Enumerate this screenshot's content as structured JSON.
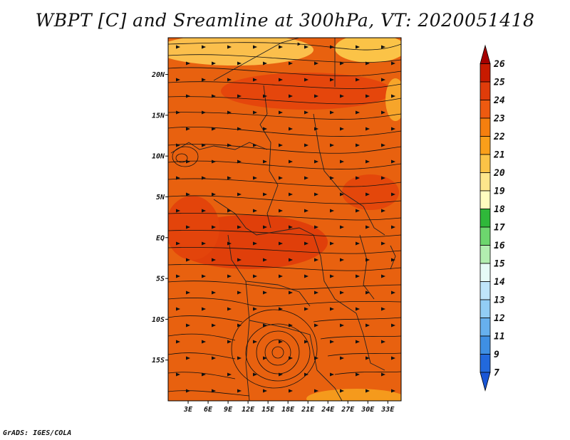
{
  "title": "WBPT [C] and Sreamline at 300hPa, VT: 2020051418",
  "credit": "GrADS: IGES/COLA",
  "map": {
    "lon_labels": [
      "3E",
      "6E",
      "9E",
      "12E",
      "15E",
      "18E",
      "21E",
      "24E",
      "27E",
      "30E",
      "33E"
    ],
    "lon_values": [
      3,
      6,
      9,
      12,
      15,
      18,
      21,
      24,
      27,
      30,
      33
    ],
    "lat_labels": [
      "20N",
      "15N",
      "10N",
      "5N",
      "EQ",
      "5S",
      "10S",
      "15S"
    ],
    "lat_values": [
      20,
      15,
      10,
      5,
      0,
      -5,
      -10,
      -15
    ],
    "lon_range": [
      0,
      35
    ],
    "lat_range": [
      -20,
      24.5
    ],
    "fill_color": "#e8610f"
  },
  "colorbar": {
    "labels": [
      "26",
      "25",
      "24",
      "23",
      "22",
      "21",
      "20",
      "19",
      "18",
      "17",
      "16",
      "15",
      "14",
      "13",
      "12",
      "11",
      "9",
      "7"
    ],
    "colors": [
      "#a50000",
      "#c81a00",
      "#e03c0a",
      "#ee5a10",
      "#f57f0f",
      "#fa9f1a",
      "#fbc347",
      "#fde68c",
      "#fffdc0",
      "#2fb83a",
      "#6dd66e",
      "#b2eeb0",
      "#e6fbf7",
      "#bfe5fb",
      "#92cdf5",
      "#67b0ee",
      "#3f8fe3",
      "#2269dd",
      "#1a56d6"
    ]
  }
}
